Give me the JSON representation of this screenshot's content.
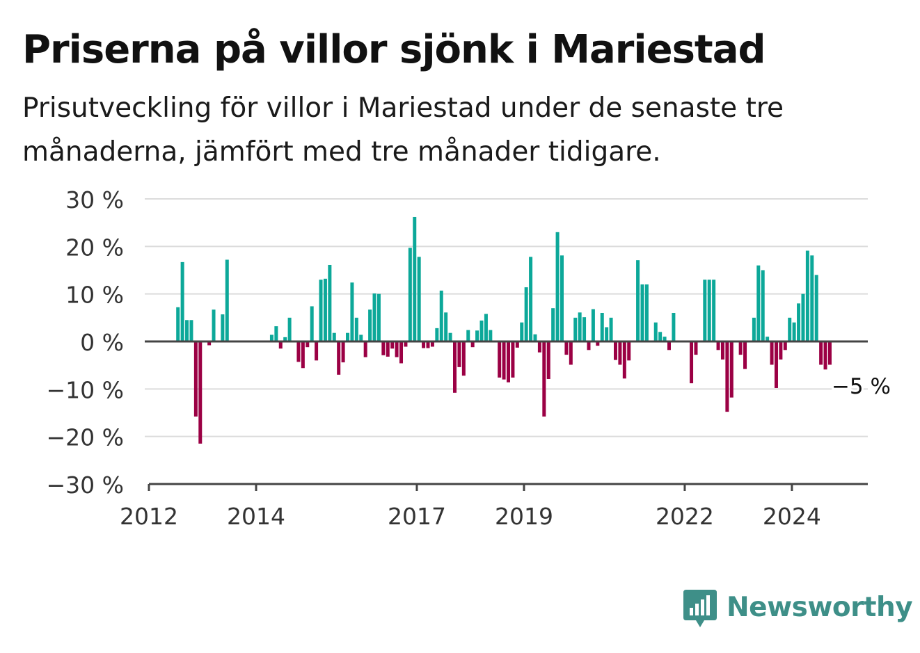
{
  "header": {
    "title": "Priserna på villor sjönk i Mariestad",
    "subtitle": "Prisutveckling för villor i Mariestad under de senaste tre månaderna, jämfört med tre månader tidigare."
  },
  "brand": {
    "name": "Newsworthy",
    "logo_icon": "bar-chart-speech-bubble-icon",
    "color": "#3e8f88"
  },
  "colors": {
    "positive": "#0ca899",
    "negative": "#9b0044",
    "grid": "#dcdcdc",
    "axis": "#444444"
  },
  "chart_data": {
    "type": "bar",
    "x_start": "2012-01",
    "x_end": "2025-06",
    "ylim": [
      -30,
      30
    ],
    "y_ticks": [
      30,
      20,
      10,
      0,
      -10,
      -20,
      -30
    ],
    "y_tick_labels": [
      "30 %",
      "20 %",
      "10 %",
      "0 %",
      "−10 %",
      "−20 %",
      "−30 %"
    ],
    "x_ticks": [
      "2012-01",
      "2014-01",
      "2017-01",
      "2019-01",
      "2022-01",
      "2024-01"
    ],
    "x_tick_labels": [
      "2012",
      "2014",
      "2017",
      "2019",
      "2022",
      "2024"
    ],
    "grid": true,
    "last_value_label": "−5 %",
    "points": [
      {
        "month": "2012-07",
        "value": 7.2
      },
      {
        "month": "2012-08",
        "value": 16.7
      },
      {
        "month": "2012-09",
        "value": 4.5
      },
      {
        "month": "2012-10",
        "value": 4.5
      },
      {
        "month": "2012-11",
        "value": -15.8
      },
      {
        "month": "2012-12",
        "value": -21.5
      },
      {
        "month": "2013-02",
        "value": -0.8
      },
      {
        "month": "2013-03",
        "value": 6.7
      },
      {
        "month": "2013-05",
        "value": 5.7
      },
      {
        "month": "2013-06",
        "value": 17.2
      },
      {
        "month": "2014-04",
        "value": 1.4
      },
      {
        "month": "2014-05",
        "value": 3.2
      },
      {
        "month": "2014-06",
        "value": -1.5
      },
      {
        "month": "2014-07",
        "value": 0.9
      },
      {
        "month": "2014-08",
        "value": 5.0
      },
      {
        "month": "2014-10",
        "value": -4.3
      },
      {
        "month": "2014-11",
        "value": -5.6
      },
      {
        "month": "2014-12",
        "value": -1.2
      },
      {
        "month": "2015-01",
        "value": 7.4
      },
      {
        "month": "2015-02",
        "value": -4.0
      },
      {
        "month": "2015-03",
        "value": 13.0
      },
      {
        "month": "2015-04",
        "value": 13.2
      },
      {
        "month": "2015-05",
        "value": 16.1
      },
      {
        "month": "2015-06",
        "value": 1.8
      },
      {
        "month": "2015-07",
        "value": -7.0
      },
      {
        "month": "2015-08",
        "value": -4.4
      },
      {
        "month": "2015-09",
        "value": 1.8
      },
      {
        "month": "2015-10",
        "value": 12.4
      },
      {
        "month": "2015-11",
        "value": 5.0
      },
      {
        "month": "2015-12",
        "value": 1.4
      },
      {
        "month": "2016-01",
        "value": -3.3
      },
      {
        "month": "2016-02",
        "value": 6.7
      },
      {
        "month": "2016-03",
        "value": 10.1
      },
      {
        "month": "2016-04",
        "value": 10.0
      },
      {
        "month": "2016-05",
        "value": -2.9
      },
      {
        "month": "2016-06",
        "value": -3.2
      },
      {
        "month": "2016-07",
        "value": -1.5
      },
      {
        "month": "2016-08",
        "value": -3.3
      },
      {
        "month": "2016-09",
        "value": -4.6
      },
      {
        "month": "2016-10",
        "value": -1.1
      },
      {
        "month": "2016-11",
        "value": 19.7
      },
      {
        "month": "2016-12",
        "value": 26.2
      },
      {
        "month": "2017-01",
        "value": 17.8
      },
      {
        "month": "2017-02",
        "value": -1.4
      },
      {
        "month": "2017-03",
        "value": -1.4
      },
      {
        "month": "2017-04",
        "value": -1.1
      },
      {
        "month": "2017-05",
        "value": 2.8
      },
      {
        "month": "2017-06",
        "value": 10.7
      },
      {
        "month": "2017-07",
        "value": 6.1
      },
      {
        "month": "2017-08",
        "value": 1.8
      },
      {
        "month": "2017-09",
        "value": -10.8
      },
      {
        "month": "2017-10",
        "value": -5.4
      },
      {
        "month": "2017-11",
        "value": -7.2
      },
      {
        "month": "2017-12",
        "value": 2.4
      },
      {
        "month": "2018-01",
        "value": -1.2
      },
      {
        "month": "2018-02",
        "value": 2.3
      },
      {
        "month": "2018-03",
        "value": 4.4
      },
      {
        "month": "2018-04",
        "value": 5.8
      },
      {
        "month": "2018-05",
        "value": 2.4
      },
      {
        "month": "2018-07",
        "value": -7.6
      },
      {
        "month": "2018-08",
        "value": -8.0
      },
      {
        "month": "2018-09",
        "value": -8.6
      },
      {
        "month": "2018-10",
        "value": -7.6
      },
      {
        "month": "2018-11",
        "value": -1.3
      },
      {
        "month": "2018-12",
        "value": 4.0
      },
      {
        "month": "2019-01",
        "value": 11.4
      },
      {
        "month": "2019-02",
        "value": 17.8
      },
      {
        "month": "2019-03",
        "value": 1.5
      },
      {
        "month": "2019-04",
        "value": -2.3
      },
      {
        "month": "2019-05",
        "value": -15.8
      },
      {
        "month": "2019-06",
        "value": -7.9
      },
      {
        "month": "2019-07",
        "value": 7.0
      },
      {
        "month": "2019-08",
        "value": 23.0
      },
      {
        "month": "2019-09",
        "value": 18.1
      },
      {
        "month": "2019-10",
        "value": -2.8
      },
      {
        "month": "2019-11",
        "value": -4.9
      },
      {
        "month": "2019-12",
        "value": 5.0
      },
      {
        "month": "2020-01",
        "value": 6.1
      },
      {
        "month": "2020-02",
        "value": 5.1
      },
      {
        "month": "2020-03",
        "value": -1.8
      },
      {
        "month": "2020-04",
        "value": 6.8
      },
      {
        "month": "2020-05",
        "value": -0.9
      },
      {
        "month": "2020-06",
        "value": 6.0
      },
      {
        "month": "2020-07",
        "value": 3.0
      },
      {
        "month": "2020-08",
        "value": 5.0
      },
      {
        "month": "2020-09",
        "value": -3.9
      },
      {
        "month": "2020-10",
        "value": -4.9
      },
      {
        "month": "2020-11",
        "value": -7.8
      },
      {
        "month": "2020-12",
        "value": -4.0
      },
      {
        "month": "2021-02",
        "value": 17.1
      },
      {
        "month": "2021-03",
        "value": 12.0
      },
      {
        "month": "2021-04",
        "value": 12.0
      },
      {
        "month": "2021-06",
        "value": 4.0
      },
      {
        "month": "2021-07",
        "value": 2.0
      },
      {
        "month": "2021-08",
        "value": 1.0
      },
      {
        "month": "2021-09",
        "value": -1.8
      },
      {
        "month": "2021-10",
        "value": 6.0
      },
      {
        "month": "2022-02",
        "value": -8.8
      },
      {
        "month": "2022-03",
        "value": -2.8
      },
      {
        "month": "2022-05",
        "value": 13.0
      },
      {
        "month": "2022-06",
        "value": 13.0
      },
      {
        "month": "2022-07",
        "value": 13.0
      },
      {
        "month": "2022-08",
        "value": -1.8
      },
      {
        "month": "2022-09",
        "value": -3.8
      },
      {
        "month": "2022-10",
        "value": -14.8
      },
      {
        "month": "2022-11",
        "value": -11.8
      },
      {
        "month": "2023-01",
        "value": -2.8
      },
      {
        "month": "2023-02",
        "value": -5.8
      },
      {
        "month": "2023-04",
        "value": 5.0
      },
      {
        "month": "2023-05",
        "value": 16.0
      },
      {
        "month": "2023-06",
        "value": 15.0
      },
      {
        "month": "2023-07",
        "value": 1.0
      },
      {
        "month": "2023-08",
        "value": -4.9
      },
      {
        "month": "2023-09",
        "value": -9.8
      },
      {
        "month": "2023-10",
        "value": -3.8
      },
      {
        "month": "2023-11",
        "value": -1.8
      },
      {
        "month": "2023-12",
        "value": 5.0
      },
      {
        "month": "2024-01",
        "value": 4.0
      },
      {
        "month": "2024-02",
        "value": 8.0
      },
      {
        "month": "2024-03",
        "value": 10.0
      },
      {
        "month": "2024-04",
        "value": 19.1
      },
      {
        "month": "2024-05",
        "value": 18.1
      },
      {
        "month": "2024-06",
        "value": 14.0
      },
      {
        "month": "2024-07",
        "value": -4.9
      },
      {
        "month": "2024-08",
        "value": -5.9
      },
      {
        "month": "2024-09",
        "value": -4.9
      }
    ]
  }
}
